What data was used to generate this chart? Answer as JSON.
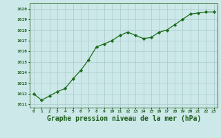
{
  "x": [
    0,
    1,
    2,
    3,
    4,
    5,
    6,
    7,
    8,
    9,
    10,
    11,
    12,
    13,
    14,
    15,
    16,
    17,
    18,
    19,
    20,
    21,
    22,
    23
  ],
  "y": [
    1012.0,
    1011.4,
    1011.8,
    1012.2,
    1012.5,
    1013.4,
    1014.2,
    1015.2,
    1016.4,
    1016.7,
    1017.0,
    1017.5,
    1017.8,
    1017.5,
    1017.2,
    1017.3,
    1017.8,
    1018.0,
    1018.5,
    1019.0,
    1019.5,
    1019.6,
    1019.7,
    1019.7
  ],
  "line_color": "#1a6b1a",
  "marker": "D",
  "marker_size": 2.2,
  "bg_color": "#cce8e8",
  "grid_color": "#aacccc",
  "xlabel": "Graphe pression niveau de la mer (hPa)",
  "xlabel_fontsize": 7.0,
  "ylabel_ticks": [
    1011,
    1012,
    1013,
    1014,
    1015,
    1016,
    1017,
    1018,
    1019,
    1020
  ],
  "xlim": [
    -0.5,
    23.5
  ],
  "ylim": [
    1010.7,
    1020.5
  ],
  "xtick_labels": [
    "0",
    "1",
    "2",
    "3",
    "4",
    "5",
    "6",
    "7",
    "8",
    "9",
    "10",
    "11",
    "12",
    "13",
    "14",
    "15",
    "16",
    "17",
    "18",
    "19",
    "20",
    "21",
    "22",
    "23"
  ],
  "title_color": "#1a5c1a",
  "font_family": "monospace"
}
